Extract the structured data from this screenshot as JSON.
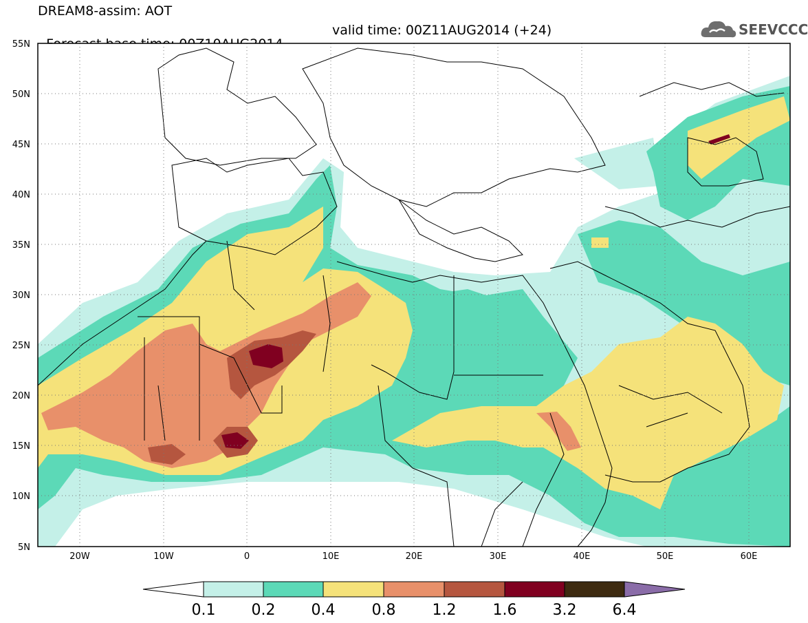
{
  "title": {
    "line1": "DREAM8-assim: AOT",
    "line2_base": "Forecast base time: 00Z10AUG2014",
    "line2_valid": "valid time: 00Z11AUG2014 (+24)"
  },
  "logo": {
    "text": "SEEVCCC",
    "icon": "cloud-icon"
  },
  "map": {
    "lat_labels": [
      "55N",
      "50N",
      "45N",
      "40N",
      "35N",
      "30N",
      "25N",
      "20N",
      "15N",
      "10N",
      "5N"
    ],
    "lon_labels": [
      "20W",
      "10W",
      "0",
      "10E",
      "20E",
      "30E",
      "40E",
      "50E",
      "60E"
    ],
    "lat_range": [
      5,
      55
    ],
    "lon_range": [
      -25,
      65
    ]
  },
  "colorbar": {
    "labels": [
      "0.1",
      "0.2",
      "0.4",
      "0.8",
      "1.2",
      "1.6",
      "3.2",
      "6.4"
    ],
    "colors": [
      "#ffffff",
      "#c4f0e8",
      "#5cd9b7",
      "#f5e27a",
      "#e8906a",
      "#b5563f",
      "#800020",
      "#3d2a10",
      "#8a6ca8"
    ]
  }
}
